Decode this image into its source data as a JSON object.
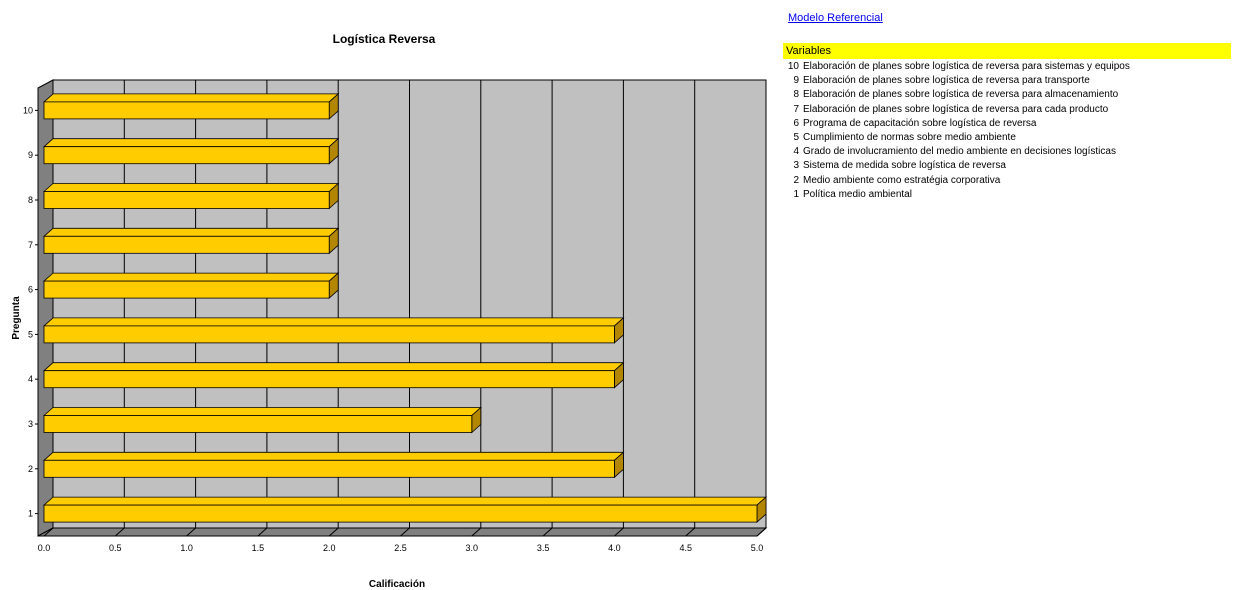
{
  "link": {
    "label": "Modelo Referencial"
  },
  "variables": {
    "header": "Variables",
    "items": [
      {
        "num": "10",
        "text": "Elaboración de planes sobre logística de reversa para sistemas y equipos"
      },
      {
        "num": "9",
        "text": "Elaboración de planes sobre logística de reversa para transporte"
      },
      {
        "num": "8",
        "text": "Elaboración de planes sobre logística de reversa para almacenamiento"
      },
      {
        "num": "7",
        "text": "Elaboración de planes sobre logística de reversa para cada producto"
      },
      {
        "num": "6",
        "text": "Programa de capacitación sobre logística de reversa"
      },
      {
        "num": "5",
        "text": "Cumplimiento de normas sobre medio ambiente"
      },
      {
        "num": "4",
        "text": "Grado de involucramiento del medio ambiente en decisiones logísticas"
      },
      {
        "num": "3",
        "text": "Sistema de medida sobre logística de reversa"
      },
      {
        "num": "2",
        "text": "Medio ambiente como estratégia corporativa"
      },
      {
        "num": "1",
        "text": "Política medio ambiental"
      }
    ]
  },
  "colors": {
    "bar": "#ffcc00",
    "bar_dark": "#b38600",
    "plot_bg": "#c0c0c0",
    "wall": "#808080",
    "header_bg": "#ffff00",
    "link": "#0000ee"
  },
  "chart_data": {
    "type": "bar",
    "orientation": "horizontal",
    "style": "3d",
    "title": "Logística Reversa",
    "xlabel": "Calificación",
    "ylabel": "Pregunta",
    "categories": [
      "1",
      "2",
      "3",
      "4",
      "5",
      "6",
      "7",
      "8",
      "9",
      "10"
    ],
    "values": [
      5,
      4,
      3,
      4,
      4,
      2,
      2,
      2,
      2,
      2
    ],
    "xlim": [
      0,
      5
    ],
    "xticks": [
      "0.0",
      "0.5",
      "1.0",
      "1.5",
      "2.0",
      "2.5",
      "3.0",
      "3.5",
      "4.0",
      "4.5",
      "5.0"
    ],
    "grid": true,
    "legend": "none"
  }
}
